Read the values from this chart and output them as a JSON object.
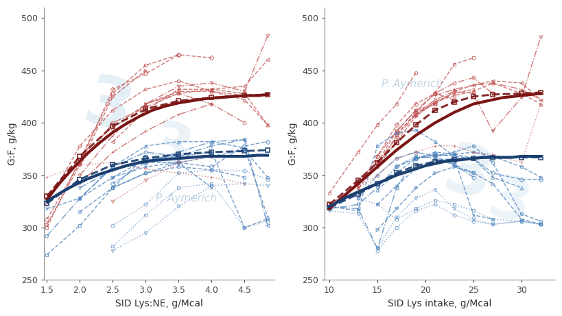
{
  "left_xlabel": "SID Lys:NE, g/Mcal",
  "right_xlabel": "SID Lys intake, g/Mcal",
  "ylabel": "G:F, g/kg",
  "ylim": [
    250,
    510
  ],
  "yticks": [
    250,
    300,
    350,
    400,
    450,
    500
  ],
  "left_xlim": [
    1.45,
    4.95
  ],
  "left_xticks": [
    1.5,
    2.0,
    2.5,
    3.0,
    3.5,
    4.0,
    4.5
  ],
  "right_xlim": [
    9.5,
    33.5
  ],
  "right_xticks": [
    10,
    15,
    20,
    25,
    30
  ],
  "watermark_text": "P. Aymerich",
  "watermark_color_left": "#c8d8e8",
  "watermark_color_right": "#c8d8e8",
  "bg_color": "#ffffff",
  "red_main": "#7B1515",
  "red_light": "#C05050",
  "blue_main": "#1A3F6F",
  "blue_light": "#4A80BB",
  "left_red_model_x": [
    1.5,
    1.7,
    1.9,
    2.1,
    2.3,
    2.5,
    2.7,
    2.9,
    3.1,
    3.3,
    3.5,
    3.7,
    3.9,
    4.1,
    4.3,
    4.5,
    4.7,
    4.85
  ],
  "left_red_model_y": [
    327,
    343,
    357,
    370,
    381,
    391,
    399,
    406,
    412,
    416,
    419,
    421,
    423,
    424,
    425,
    426,
    426,
    427
  ],
  "left_blue_model_x": [
    1.5,
    1.7,
    1.9,
    2.1,
    2.3,
    2.5,
    2.7,
    2.9,
    3.1,
    3.3,
    3.5,
    3.7,
    3.9,
    4.1,
    4.3,
    4.5,
    4.7,
    4.85
  ],
  "left_blue_model_y": [
    325,
    333,
    340,
    346,
    351,
    355,
    359,
    362,
    364,
    365,
    366,
    367,
    368,
    368,
    368,
    368,
    369,
    369
  ],
  "left_red_avg_x": [
    1.5,
    2.0,
    2.5,
    3.0,
    3.5,
    4.0,
    4.5,
    4.85
  ],
  "left_red_avg_y": [
    330,
    368,
    397,
    413,
    421,
    424,
    426,
    427
  ],
  "left_blue_avg_x": [
    1.5,
    2.0,
    2.5,
    3.0,
    3.5,
    4.0,
    4.5,
    4.85
  ],
  "left_blue_avg_y": [
    323,
    346,
    360,
    366,
    370,
    372,
    373,
    374
  ],
  "right_red_model_x": [
    10,
    11,
    12,
    13,
    14,
    15,
    16,
    17,
    18,
    19,
    20,
    21,
    22,
    23,
    24,
    25,
    26,
    27,
    28,
    29,
    30,
    31,
    32
  ],
  "right_red_model_y": [
    318,
    326,
    334,
    342,
    350,
    358,
    366,
    374,
    381,
    388,
    394,
    400,
    405,
    410,
    414,
    418,
    420,
    422,
    424,
    425,
    426,
    427,
    428
  ],
  "right_blue_model_x": [
    10,
    11,
    12,
    13,
    14,
    15,
    16,
    17,
    18,
    19,
    20,
    21,
    22,
    23,
    24,
    25,
    26,
    27,
    28,
    29,
    30,
    31,
    32
  ],
  "right_blue_model_y": [
    320,
    325,
    330,
    334,
    338,
    342,
    346,
    350,
    353,
    356,
    359,
    361,
    363,
    364,
    365,
    366,
    367,
    367,
    367,
    367,
    368,
    368,
    368
  ],
  "right_red_avg_x": [
    10,
    13,
    15,
    17,
    19,
    21,
    23,
    25,
    27,
    30,
    32
  ],
  "right_red_avg_y": [
    322,
    345,
    362,
    381,
    398,
    412,
    420,
    425,
    427,
    428,
    429
  ],
  "right_blue_avg_x": [
    10,
    13,
    15,
    17,
    19,
    21,
    23,
    25,
    27,
    30,
    32
  ],
  "right_blue_avg_y": [
    319,
    332,
    342,
    352,
    359,
    363,
    365,
    366,
    367,
    367,
    367
  ],
  "left_red_studies": [
    {
      "x": [
        1.5,
        2.0,
        2.5,
        3.0
      ],
      "y": [
        303,
        360,
        425,
        450
      ],
      "ls": "--",
      "mk": ">"
    },
    {
      "x": [
        1.5,
        2.0,
        2.5,
        3.0,
        3.5
      ],
      "y": [
        300,
        365,
        428,
        455,
        465
      ],
      "ls": "--",
      "mk": "s"
    },
    {
      "x": [
        2.0,
        2.5,
        3.0,
        3.5,
        4.0,
        4.5
      ],
      "y": [
        360,
        400,
        415,
        428,
        418,
        400
      ],
      "ls": "-.",
      "mk": "o"
    },
    {
      "x": [
        2.5,
        3.0,
        3.5,
        4.0,
        4.5,
        4.85
      ],
      "y": [
        395,
        418,
        430,
        430,
        422,
        398
      ],
      "ls": "--",
      "mk": "^"
    },
    {
      "x": [
        1.5,
        2.0,
        2.5,
        3.0,
        3.5,
        4.0
      ],
      "y": [
        308,
        362,
        432,
        447,
        465,
        462
      ],
      "ls": "--",
      "mk": "D"
    },
    {
      "x": [
        2.0,
        2.5,
        3.0,
        3.5,
        4.0,
        4.5,
        4.85
      ],
      "y": [
        350,
        388,
        418,
        435,
        438,
        430,
        483
      ],
      "ls": "-.",
      "mk": "v"
    },
    {
      "x": [
        2.5,
        3.0,
        3.5,
        4.0,
        4.5,
        4.85
      ],
      "y": [
        382,
        412,
        432,
        432,
        435,
        460
      ],
      "ls": "--",
      "mk": "<"
    },
    {
      "x": [
        1.5,
        2.0,
        2.5,
        3.0,
        3.5,
        4.0,
        4.5
      ],
      "y": [
        323,
        378,
        412,
        432,
        440,
        430,
        426
      ],
      "ls": "--",
      "mk": "p"
    },
    {
      "x": [
        2.0,
        2.5,
        3.0,
        3.5,
        4.0
      ],
      "y": [
        342,
        372,
        392,
        408,
        418
      ],
      "ls": "-.",
      "mk": "+"
    },
    {
      "x": [
        3.0,
        3.5,
        4.0,
        4.5,
        4.85
      ],
      "y": [
        418,
        428,
        432,
        428,
        398
      ],
      "ls": "--",
      "mk": "x"
    }
  ],
  "left_blue_studies": [
    {
      "x": [
        1.5,
        2.0,
        2.5,
        3.0
      ],
      "y": [
        274,
        302,
        338,
        368
      ],
      "ls": "--",
      "mk": "s"
    },
    {
      "x": [
        1.5,
        2.0,
        2.5,
        3.0,
        3.5
      ],
      "y": [
        292,
        328,
        358,
        372,
        368
      ],
      "ls": "-.",
      "mk": "o"
    },
    {
      "x": [
        2.0,
        2.5,
        3.0,
        3.5,
        4.0,
        4.5,
        4.85
      ],
      "y": [
        328,
        358,
        378,
        382,
        382,
        376,
        310
      ],
      "ls": "--",
      "mk": "^"
    },
    {
      "x": [
        2.5,
        3.0,
        3.5,
        4.0,
        4.5,
        4.85
      ],
      "y": [
        342,
        362,
        362,
        358,
        378,
        382
      ],
      "ls": "--",
      "mk": "D"
    },
    {
      "x": [
        2.0,
        2.5,
        3.0,
        3.5,
        4.0,
        4.5
      ],
      "y": [
        338,
        355,
        362,
        368,
        378,
        384
      ],
      "ls": "-.",
      "mk": "v"
    },
    {
      "x": [
        2.5,
        3.0,
        3.5,
        4.0,
        4.5,
        4.85
      ],
      "y": [
        348,
        365,
        368,
        372,
        300,
        308
      ],
      "ls": "--",
      "mk": ">"
    },
    {
      "x": [
        2.0,
        2.5,
        3.0,
        3.5,
        4.0,
        4.5,
        4.85
      ],
      "y": [
        315,
        338,
        352,
        362,
        368,
        374,
        348
      ],
      "ls": "--",
      "mk": "p"
    },
    {
      "x": [
        3.0,
        3.5,
        4.0,
        4.5,
        4.85
      ],
      "y": [
        362,
        372,
        382,
        384,
        302
      ],
      "ls": "-.",
      "mk": "<"
    },
    {
      "x": [
        2.5,
        3.0,
        3.5,
        4.0,
        4.5
      ],
      "y": [
        338,
        352,
        358,
        355,
        348
      ],
      "ls": "--",
      "mk": "h"
    },
    {
      "x": [
        1.5,
        2.0,
        2.5,
        3.0,
        3.5,
        4.0
      ],
      "y": [
        318,
        328,
        348,
        358,
        362,
        338
      ],
      "ls": "--",
      "mk": "x"
    }
  ],
  "left_red_dotted": [
    {
      "x": [
        1.5,
        2.0,
        2.5,
        3.0,
        3.5,
        4.0,
        4.5
      ],
      "y": [
        348,
        360,
        362,
        356,
        352,
        348,
        342
      ],
      "mk": "+"
    },
    {
      "x": [
        2.5,
        3.0,
        3.5,
        4.0
      ],
      "y": [
        325,
        345,
        362,
        368
      ],
      "mk": "v"
    }
  ],
  "left_blue_dotted": [
    {
      "x": [
        2.5,
        3.0,
        3.5,
        4.0,
        4.5,
        4.85
      ],
      "y": [
        278,
        295,
        320,
        340,
        342,
        340
      ],
      "mk": "v"
    },
    {
      "x": [
        2.5,
        3.0,
        3.5,
        4.0,
        4.5,
        4.85
      ],
      "y": [
        282,
        312,
        338,
        342,
        300,
        306
      ],
      "mk": "s"
    },
    {
      "x": [
        2.5,
        3.0,
        3.5,
        4.0,
        4.5,
        4.85
      ],
      "y": [
        302,
        322,
        352,
        355,
        354,
        346
      ],
      "mk": "o"
    }
  ],
  "right_red_studies": [
    {
      "x": [
        10,
        13,
        15,
        17,
        19,
        21
      ],
      "y": [
        318,
        342,
        362,
        392,
        412,
        418
      ],
      "ls": "--",
      "mk": ">"
    },
    {
      "x": [
        13,
        15,
        17,
        19,
        21,
        23,
        25
      ],
      "y": [
        338,
        358,
        388,
        410,
        428,
        456,
        462
      ],
      "ls": "--",
      "mk": "s"
    },
    {
      "x": [
        15,
        17,
        19,
        21,
        23,
        25,
        27
      ],
      "y": [
        368,
        392,
        412,
        428,
        438,
        443,
        428
      ],
      "ls": "-.",
      "mk": "o"
    },
    {
      "x": [
        17,
        19,
        21,
        23,
        25,
        27,
        30,
        32
      ],
      "y": [
        390,
        408,
        420,
        426,
        430,
        438,
        428,
        418
      ],
      "ls": "--",
      "mk": "^"
    },
    {
      "x": [
        10,
        13,
        15,
        17,
        19,
        21,
        23
      ],
      "y": [
        322,
        340,
        368,
        398,
        418,
        428,
        422
      ],
      "ls": "--",
      "mk": "D"
    },
    {
      "x": [
        15,
        17,
        19,
        21,
        23,
        25,
        27,
        30,
        32
      ],
      "y": [
        362,
        386,
        408,
        422,
        430,
        428,
        392,
        424,
        482
      ],
      "ls": "-.",
      "mk": "v"
    },
    {
      "x": [
        19,
        21,
        23,
        25,
        27,
        30,
        32
      ],
      "y": [
        408,
        418,
        430,
        436,
        440,
        438,
        422
      ],
      "ls": "--",
      "mk": "<"
    },
    {
      "x": [
        10,
        13,
        15,
        17,
        19
      ],
      "y": [
        333,
        372,
        398,
        418,
        448
      ],
      "ls": "--",
      "mk": "p"
    },
    {
      "x": [
        21,
        23,
        25,
        27,
        30,
        32
      ],
      "y": [
        426,
        432,
        436,
        438,
        432,
        422
      ],
      "ls": "-.",
      "mk": "+"
    },
    {
      "x": [
        15,
        17,
        19,
        21,
        23,
        25
      ],
      "y": [
        358,
        382,
        406,
        420,
        428,
        432
      ],
      "ls": "--",
      "mk": "x"
    }
  ],
  "right_blue_studies": [
    {
      "x": [
        10,
        13,
        15,
        17,
        19,
        21,
        23
      ],
      "y": [
        320,
        316,
        378,
        390,
        393,
        382,
        368
      ],
      "ls": "--",
      "mk": "s"
    },
    {
      "x": [
        13,
        15,
        17,
        19,
        21,
        23,
        25
      ],
      "y": [
        328,
        350,
        366,
        372,
        368,
        360,
        348
      ],
      "ls": "-.",
      "mk": "o"
    },
    {
      "x": [
        15,
        17,
        19,
        21,
        23,
        25,
        27,
        30
      ],
      "y": [
        336,
        352,
        366,
        372,
        370,
        366,
        348,
        338
      ],
      "ls": "--",
      "mk": "^"
    },
    {
      "x": [
        17,
        19,
        21,
        23,
        25,
        27,
        30,
        32
      ],
      "y": [
        358,
        366,
        370,
        368,
        366,
        352,
        346,
        346
      ],
      "ls": "--",
      "mk": "D"
    },
    {
      "x": [
        10,
        13,
        15,
        17,
        19,
        21,
        23,
        25
      ],
      "y": [
        318,
        322,
        338,
        358,
        368,
        366,
        360,
        352
      ],
      "ls": "-.",
      "mk": "v"
    },
    {
      "x": [
        15,
        17,
        19,
        21,
        23,
        25,
        27,
        30,
        32
      ],
      "y": [
        298,
        318,
        338,
        352,
        358,
        352,
        342,
        308,
        303
      ],
      "ls": "--",
      "mk": ">"
    },
    {
      "x": [
        19,
        21,
        23,
        25,
        27,
        30,
        32
      ],
      "y": [
        366,
        368,
        370,
        372,
        368,
        358,
        348
      ],
      "ls": "--",
      "mk": "p"
    },
    {
      "x": [
        10,
        13,
        15,
        17,
        19,
        21
      ],
      "y": [
        320,
        318,
        280,
        338,
        366,
        370
      ],
      "ls": "-.",
      "mk": "<"
    },
    {
      "x": [
        21,
        23,
        25,
        27,
        30,
        32
      ],
      "y": [
        368,
        372,
        378,
        362,
        313,
        306
      ],
      "ls": "--",
      "mk": "h"
    },
    {
      "x": [
        15,
        17,
        19,
        21,
        23,
        25,
        27
      ],
      "y": [
        322,
        340,
        356,
        364,
        366,
        312,
        308
      ],
      "ls": "--",
      "mk": "x"
    }
  ],
  "right_red_dotted": [
    {
      "x": [
        13,
        15,
        17,
        19,
        21,
        23,
        25,
        27,
        30,
        32
      ],
      "y": [
        338,
        350,
        366,
        372,
        378,
        378,
        372,
        370,
        362,
        418
      ],
      "mk": "+"
    }
  ],
  "right_blue_dotted": [
    {
      "x": [
        10,
        13,
        15,
        17,
        19,
        21,
        23,
        25,
        27,
        30,
        32
      ],
      "y": [
        316,
        313,
        280,
        310,
        328,
        336,
        318,
        308,
        303,
        306,
        303
      ],
      "mk": "v"
    },
    {
      "x": [
        13,
        15,
        17,
        19,
        21,
        23,
        25,
        27,
        30,
        32
      ],
      "y": [
        328,
        322,
        308,
        318,
        326,
        322,
        316,
        308,
        306,
        303
      ],
      "mk": "s"
    },
    {
      "x": [
        15,
        17,
        19,
        21,
        23,
        25,
        27,
        30,
        32
      ],
      "y": [
        278,
        300,
        316,
        322,
        312,
        306,
        303,
        306,
        303
      ],
      "mk": "o"
    }
  ]
}
